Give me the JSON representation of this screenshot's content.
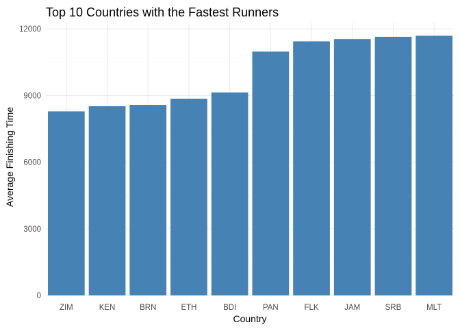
{
  "chart_data": {
    "type": "bar",
    "title": "Top 10 Countries with the Fastest Runners",
    "xlabel": "Country",
    "ylabel": "Average Finishing Time",
    "categories": [
      "ZIM",
      "KEN",
      "BRN",
      "ETH",
      "BDI",
      "PAN",
      "FLK",
      "JAM",
      "SRB",
      "MLT"
    ],
    "values": [
      8290,
      8520,
      8580,
      8860,
      9140,
      10980,
      11440,
      11540,
      11640,
      11700
    ],
    "ylim": [
      0,
      12285
    ],
    "yticks": [
      0,
      3000,
      6000,
      9000,
      12000
    ],
    "ytick_labels": [
      "0",
      "3000",
      "6000",
      "9000",
      "12000"
    ],
    "grid": true,
    "legend": "none",
    "colors": {
      "bar": "#4682B4",
      "grid": "#ebebeb",
      "text": "#4d4d4d"
    }
  }
}
